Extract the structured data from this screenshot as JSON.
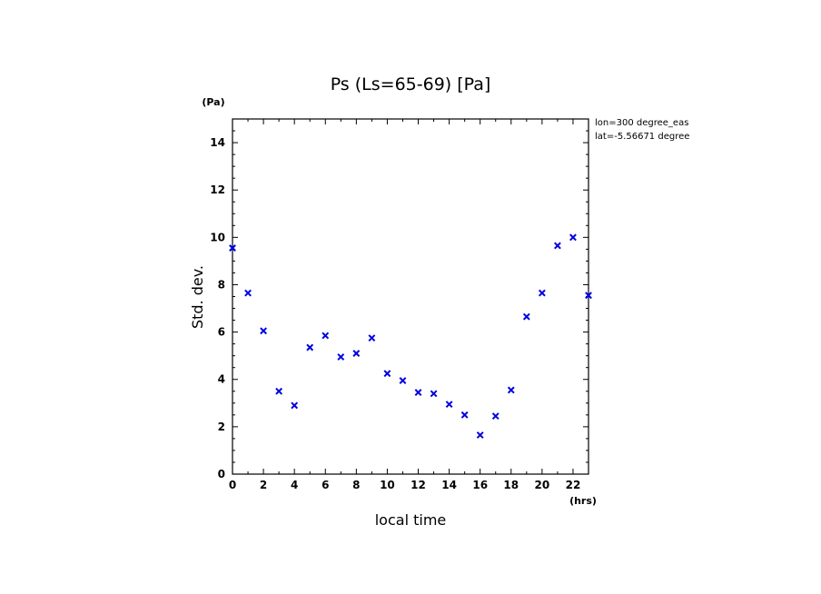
{
  "chart_data": {
    "type": "scatter",
    "title": "Ps (Ls=65-69) [Pa]",
    "xlabel": "local time",
    "ylabel": "Std. dev.",
    "xunit": "(hrs)",
    "yunit": "(Pa)",
    "xlim": [
      0,
      23
    ],
    "ylim": [
      0,
      15
    ],
    "xticks": [
      0,
      2,
      4,
      6,
      8,
      10,
      12,
      14,
      16,
      18,
      20,
      22
    ],
    "yticks": [
      0,
      2,
      4,
      6,
      8,
      10,
      12,
      14
    ],
    "marker": "x",
    "marker_color": "#0000e0",
    "annotations": [
      "lon=300 degree_eas",
      "lat=-5.56671 degree"
    ],
    "series": [
      {
        "x": [
          0,
          1,
          2,
          3,
          4,
          5,
          6,
          7,
          8,
          9,
          10,
          11,
          12,
          13,
          14,
          15,
          16,
          17,
          18,
          19,
          20,
          21,
          22,
          23
        ],
        "y": [
          9.55,
          7.65,
          6.05,
          3.5,
          2.9,
          5.35,
          5.85,
          4.95,
          5.1,
          5.75,
          4.25,
          3.95,
          3.45,
          3.4,
          2.95,
          2.5,
          1.65,
          2.45,
          3.55,
          6.65,
          7.65,
          9.65,
          10.0,
          7.55
        ]
      }
    ]
  }
}
